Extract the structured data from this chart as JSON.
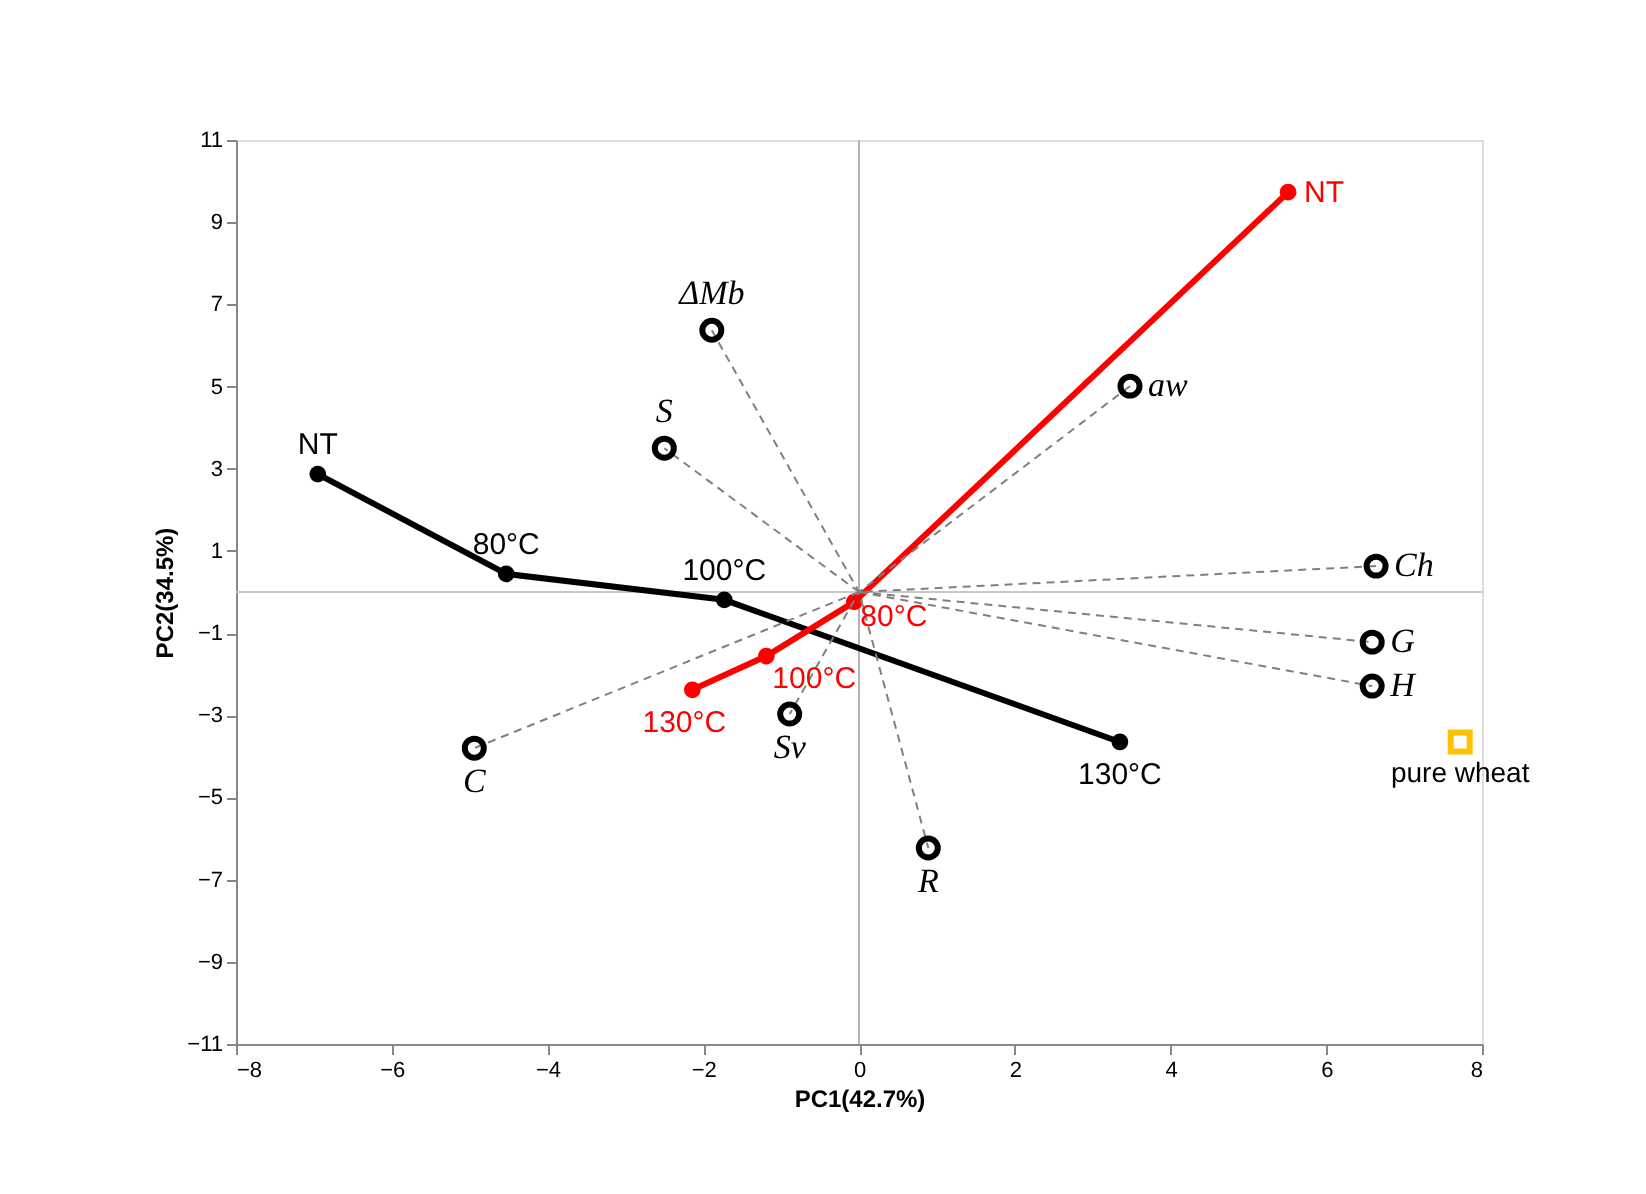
{
  "chart_data": {
    "type": "scatter",
    "xlabel": "PC1(42.7%)",
    "ylabel": "PC2(34.5%)",
    "xlim": [
      -8,
      8
    ],
    "ylim": [
      -11,
      11
    ],
    "xticks": [
      -8,
      -6,
      -4,
      -2,
      0,
      2,
      4,
      6,
      8
    ],
    "yticks": [
      -11,
      -9,
      -7,
      -5,
      -3,
      -1,
      1,
      3,
      5,
      7,
      9,
      11
    ],
    "grid": false,
    "marker": "circle",
    "ref_lines": [
      {
        "axis": "x",
        "value": 0,
        "color": "#b4b4b4"
      },
      {
        "axis": "y",
        "value": 0,
        "color": "#c8c8c8"
      }
    ],
    "series": [
      {
        "type": "line",
        "color": "#000000",
        "x": [
          -6.95,
          -4.53,
          -1.73,
          3.35
        ],
        "values": [
          2.87,
          0.44,
          -0.19,
          -3.65
        ]
      },
      {
        "type": "line",
        "color": "#ff0000",
        "x": [
          5.51,
          -0.06,
          -1.19,
          -2.14
        ],
        "values": [
          9.73,
          -0.24,
          -1.56,
          -2.38
        ]
      },
      {
        "type": "line",
        "color": "#808080",
        "line_style": "dashed",
        "marker": "none",
        "x": [
          -1.89,
          0,
          0.89
        ],
        "values": [
          6.37,
          0,
          -6.23
        ]
      },
      {
        "type": "line",
        "color": "#808080",
        "line_style": "dashed",
        "marker": "none",
        "x": [
          0,
          -2.5
        ],
        "values": [
          0,
          3.5
        ]
      },
      {
        "type": "line",
        "color": "#808080",
        "line_style": "dashed",
        "marker": "none",
        "x": [
          3.48,
          0,
          -0.89
        ],
        "values": [
          5.01,
          0,
          -2.97
        ]
      },
      {
        "type": "line",
        "color": "#808080",
        "line_style": "dashed",
        "marker": "none",
        "x": [
          6.64,
          0,
          -4.94
        ],
        "values": [
          0.63,
          0,
          -3.8
        ]
      },
      {
        "type": "line",
        "color": "#808080",
        "line_style": "dashed",
        "marker": "none",
        "x": [
          0,
          6.59
        ],
        "values": [
          0,
          -1.22
        ]
      },
      {
        "type": "line",
        "color": "#808080",
        "line_style": "dashed",
        "marker": "none",
        "x": [
          0,
          6.59
        ],
        "values": [
          0,
          -2.29
        ]
      },
      {
        "name": "ΔMb",
        "color": "#000000",
        "x": [
          -1.89
        ],
        "values": [
          6.37
        ]
      },
      {
        "name": "S",
        "color": "#000000",
        "x": [
          -2.5
        ],
        "values": [
          3.5
        ]
      },
      {
        "name": "aw",
        "color": "#000000",
        "x": [
          3.48
        ],
        "values": [
          5.01
        ]
      },
      {
        "name": "Ch",
        "color": "#000000",
        "x": [
          6.64
        ],
        "values": [
          0.63
        ]
      },
      {
        "name": "G",
        "color": "#000000",
        "x": [
          6.59
        ],
        "values": [
          -1.22
        ]
      },
      {
        "name": "H",
        "color": "#000000",
        "x": [
          6.59
        ],
        "values": [
          -2.29
        ]
      },
      {
        "name": "Sv",
        "color": "#000000",
        "x": [
          -0.89
        ],
        "values": [
          -2.97
        ]
      },
      {
        "name": "R",
        "color": "#000000",
        "x": [
          0.89
        ],
        "values": [
          -6.23
        ]
      },
      {
        "name": "C",
        "color": "#000000",
        "x": [
          -4.94
        ],
        "values": [
          -3.8
        ]
      },
      {
        "name": "pure wheat",
        "color": "#ffc000",
        "marker": "square",
        "x": [
          7.72
        ],
        "values": [
          -3.65
        ]
      }
    ],
    "annotations": [
      {
        "text": "NT",
        "x": -6.95,
        "y": 2.87
      },
      {
        "text": "80°C",
        "x": -4.53,
        "y": 0.44
      },
      {
        "text": "100°C",
        "x": -1.73,
        "y": -0.19
      },
      {
        "text": "130°C",
        "x": 3.35,
        "y": -3.65
      },
      {
        "text": "NT",
        "x": 5.51,
        "y": 9.73
      },
      {
        "text": "80°C",
        "x": -0.06,
        "y": -0.24
      },
      {
        "text": "100°C",
        "x": -1.19,
        "y": -1.56
      },
      {
        "text": "130°C",
        "x": -2.14,
        "y": -2.38
      }
    ]
  }
}
